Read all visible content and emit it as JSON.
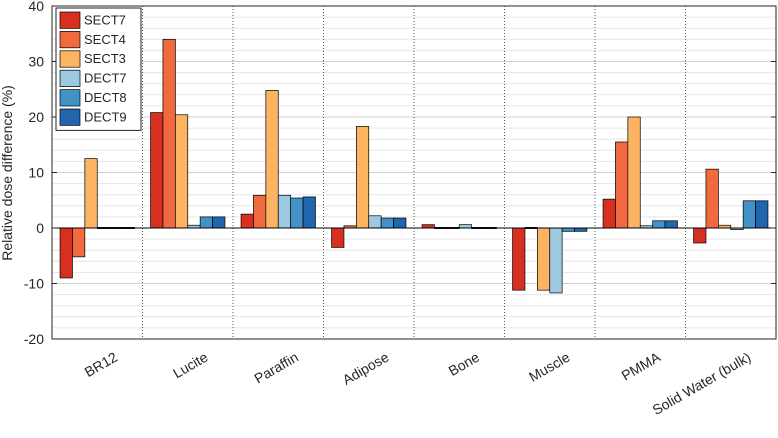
{
  "chart_data": {
    "type": "bar",
    "title": "",
    "xlabel": "",
    "ylabel": "Relative dose difference (%)",
    "ylim": [
      -20,
      40
    ],
    "yticks": [
      "-20",
      "-10",
      "0",
      "10",
      "20",
      "30",
      "40"
    ],
    "categories": [
      "BR12",
      "Lucite",
      "Paraffin",
      "Adipose",
      "Bone",
      "Muscle",
      "PMMA",
      "Solid Water (bulk)"
    ],
    "series": [
      {
        "name": "SECT7",
        "color": "#d7301f",
        "values": [
          -9.0,
          20.8,
          2.5,
          -3.5,
          0.6,
          -11.2,
          5.2,
          -2.7
        ]
      },
      {
        "name": "SECT4",
        "color": "#f16a3f",
        "values": [
          -5.2,
          34.0,
          5.9,
          0.4,
          -0.2,
          0.0,
          15.5,
          10.6
        ]
      },
      {
        "name": "SECT3",
        "color": "#fdb462",
        "values": [
          12.5,
          20.4,
          24.8,
          18.3,
          0.0,
          -11.2,
          20.0,
          0.5
        ]
      },
      {
        "name": "DECT7",
        "color": "#9ecae1",
        "values": [
          0.1,
          0.5,
          5.9,
          2.2,
          0.6,
          -11.7,
          0.4,
          -0.3
        ]
      },
      {
        "name": "DECT8",
        "color": "#4292c6",
        "values": [
          0.0,
          2.0,
          5.4,
          1.8,
          0.2,
          -0.6,
          1.3,
          4.9
        ]
      },
      {
        "name": "DECT9",
        "color": "#2166ac",
        "values": [
          0.0,
          2.0,
          5.6,
          1.8,
          0.2,
          -0.6,
          1.3,
          4.9
        ]
      }
    ],
    "legend_position": "top-left",
    "grid": true
  }
}
